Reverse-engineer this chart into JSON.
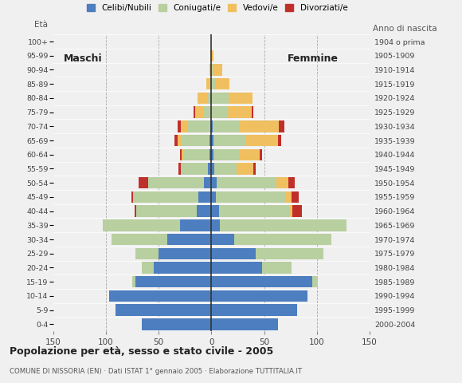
{
  "age_groups": [
    "100+",
    "95-99",
    "90-94",
    "85-89",
    "80-84",
    "75-79",
    "70-74",
    "65-69",
    "60-64",
    "55-59",
    "50-54",
    "45-49",
    "40-44",
    "35-39",
    "30-34",
    "25-29",
    "20-24",
    "15-19",
    "10-14",
    "5-9",
    "0-4"
  ],
  "birth_years": [
    "1904 o prima",
    "1905-1909",
    "1910-1914",
    "1915-1919",
    "1920-1924",
    "1925-1929",
    "1930-1934",
    "1935-1939",
    "1940-1944",
    "1945-1949",
    "1950-1954",
    "1955-1959",
    "1960-1964",
    "1965-1969",
    "1970-1974",
    "1975-1979",
    "1980-1984",
    "1985-1989",
    "1990-1994",
    "1995-1999",
    "2000-2004"
  ],
  "male": {
    "celibe": [
      0,
      0,
      0,
      0,
      0,
      0,
      1,
      2,
      2,
      3,
      7,
      12,
      14,
      30,
      42,
      50,
      55,
      72,
      97,
      91,
      66
    ],
    "coniugato": [
      0,
      0,
      0,
      1,
      4,
      8,
      22,
      26,
      24,
      25,
      53,
      62,
      57,
      73,
      53,
      22,
      11,
      3,
      0,
      0,
      0
    ],
    "vedovo": [
      0,
      1,
      2,
      4,
      9,
      7,
      6,
      4,
      2,
      1,
      0,
      0,
      0,
      0,
      0,
      0,
      0,
      0,
      0,
      0,
      0
    ],
    "divorziato": [
      0,
      0,
      0,
      0,
      0,
      2,
      3,
      3,
      2,
      2,
      9,
      2,
      2,
      0,
      0,
      0,
      0,
      0,
      0,
      0,
      0
    ]
  },
  "female": {
    "nubile": [
      0,
      0,
      0,
      0,
      0,
      0,
      1,
      2,
      2,
      3,
      5,
      4,
      7,
      8,
      22,
      42,
      48,
      96,
      91,
      81,
      63
    ],
    "coniugata": [
      0,
      0,
      1,
      4,
      16,
      15,
      26,
      31,
      25,
      21,
      57,
      67,
      67,
      120,
      92,
      64,
      28,
      5,
      0,
      0,
      0
    ],
    "vedova": [
      0,
      2,
      9,
      13,
      23,
      23,
      37,
      30,
      19,
      16,
      11,
      5,
      3,
      0,
      0,
      0,
      0,
      0,
      0,
      0,
      0
    ],
    "divorziata": [
      0,
      0,
      0,
      0,
      0,
      2,
      5,
      3,
      2,
      2,
      6,
      7,
      9,
      0,
      0,
      0,
      0,
      0,
      0,
      0,
      0
    ]
  },
  "colors": {
    "celibe": "#4d7ebf",
    "coniugato": "#b8cfa0",
    "vedovo": "#f0c060",
    "divorziato": "#c0302a"
  },
  "title": "Popolazione per età, sesso e stato civile - 2005",
  "subtitle": "COMUNE DI NISSORIA (EN) · Dati ISTAT 1° gennaio 2005 · Elaborazione TUTTITALIA.IT",
  "xlim": 150,
  "legend_labels": [
    "Celibi/Nubili",
    "Coniugati/e",
    "Vedovi/e",
    "Divorziati/e"
  ],
  "bg_color": "#f0f0f0"
}
